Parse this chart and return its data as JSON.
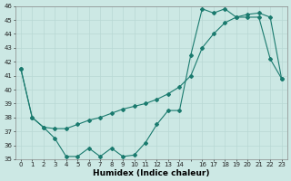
{
  "xlabel": "Humidex (Indice chaleur)",
  "bg_color": "#cce8e4",
  "line_color": "#1a7a6e",
  "grid_color": "#b8d8d4",
  "series1_x": [
    0,
    1,
    2,
    3,
    4,
    5,
    6,
    7,
    8,
    9,
    10,
    11,
    12,
    13,
    14,
    15,
    16,
    17,
    18,
    19,
    20,
    21,
    22,
    23
  ],
  "series1_y": [
    41.5,
    38.0,
    37.3,
    36.5,
    35.2,
    35.2,
    35.8,
    35.2,
    35.8,
    35.2,
    35.3,
    36.2,
    37.5,
    38.5,
    38.5,
    42.5,
    45.8,
    45.5,
    45.8,
    45.2,
    45.2,
    45.2,
    42.2,
    40.8
  ],
  "series2_x": [
    0,
    1,
    2,
    3,
    4,
    5,
    6,
    7,
    8,
    9,
    10,
    11,
    12,
    13,
    14,
    15,
    16,
    17,
    18,
    19,
    20,
    21,
    22,
    23
  ],
  "series2_y": [
    41.5,
    38.0,
    37.3,
    37.2,
    37.2,
    37.5,
    37.8,
    38.0,
    38.3,
    38.6,
    38.8,
    39.0,
    39.3,
    39.7,
    40.2,
    41.0,
    43.0,
    44.0,
    44.8,
    45.2,
    45.4,
    45.5,
    45.2,
    40.8
  ],
  "ylim": [
    35,
    46
  ],
  "xlim": [
    -0.5,
    23.5
  ],
  "yticks": [
    35,
    36,
    37,
    38,
    39,
    40,
    41,
    42,
    43,
    44,
    45,
    46
  ],
  "xticks": [
    0,
    1,
    2,
    3,
    4,
    5,
    6,
    7,
    8,
    9,
    10,
    11,
    12,
    13,
    14,
    15,
    16,
    17,
    18,
    19,
    20,
    21,
    22,
    23
  ],
  "xtick_labels": [
    "0",
    "1",
    "2",
    "3",
    "4",
    "5",
    "6",
    "7",
    "8",
    "9",
    "10",
    "11",
    "12",
    "13",
    "14",
    "",
    "16",
    "17",
    "18",
    "19",
    "20",
    "21",
    "22",
    "23"
  ],
  "marker": "D",
  "markersize": 2.0,
  "linewidth": 0.8,
  "tick_fontsize": 5.0,
  "xlabel_fontsize": 6.5
}
